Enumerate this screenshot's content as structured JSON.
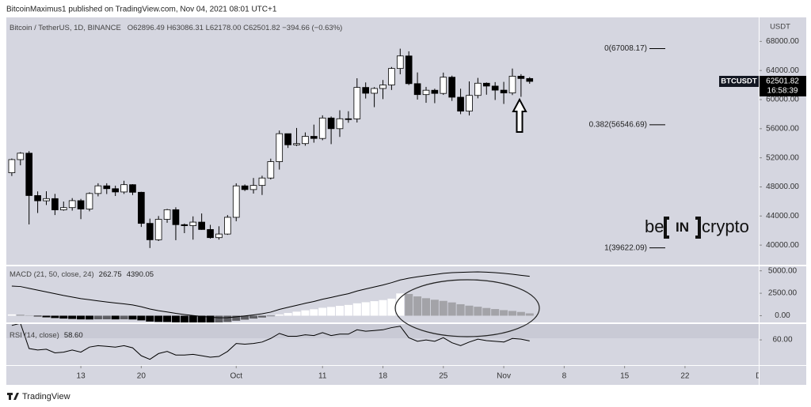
{
  "header": {
    "published": "BitcoinMaximus1 published on TradingView.com, Nov 04, 2021 08:01 UTC+1"
  },
  "watermark": {
    "left": "be",
    "middle": "IN",
    "right": "crypto"
  },
  "footer": {
    "brand": "TradingView"
  },
  "chart_data": [
    {
      "type": "candlestick",
      "symbol": "Bitcoin / TetherUS, 1D, BINANCE",
      "ohlc_label": "O62896.49 H63086.31 L62178.00 C62501.82 −394.66 (−0.63%)",
      "axis_unit": "USDT",
      "x": [
        "Sep 5",
        "Sep 6",
        "Sep 7",
        "Sep 8",
        "Sep 9",
        "Sep 10",
        "Sep 11",
        "Sep 12",
        "Sep 13",
        "Sep 14",
        "Sep 15",
        "Sep 16",
        "Sep 17",
        "Sep 18",
        "Sep 19",
        "Sep 20",
        "Sep 21",
        "Sep 22",
        "Sep 23",
        "Sep 24",
        "Sep 25",
        "Sep 26",
        "Sep 27",
        "Sep 28",
        "Sep 29",
        "Sep 30",
        "Oct 1",
        "Oct 2",
        "Oct 3",
        "Oct 4",
        "Oct 5",
        "Oct 6",
        "Oct 7",
        "Oct 8",
        "Oct 9",
        "Oct 10",
        "Oct 11",
        "Oct 12",
        "Oct 13",
        "Oct 14",
        "Oct 15",
        "Oct 16",
        "Oct 17",
        "Oct 18",
        "Oct 19",
        "Oct 20",
        "Oct 21",
        "Oct 22",
        "Oct 23",
        "Oct 24",
        "Oct 25",
        "Oct 26",
        "Oct 27",
        "Oct 28",
        "Oct 29",
        "Oct 30",
        "Oct 31",
        "Nov 1",
        "Nov 2",
        "Nov 3",
        "Nov 4"
      ],
      "open": [
        49944,
        51753,
        52633,
        46811,
        46091,
        46391,
        44842,
        45154,
        46107,
        44960,
        47093,
        48146,
        47753,
        47303,
        48307,
        47261,
        42987,
        40734,
        43543,
        44865,
        42810,
        42670,
        43160,
        42147,
        41026,
        41524,
        43820,
        48141,
        47634,
        48200,
        49224,
        51471,
        55315,
        53785,
        53951,
        54949,
        54659,
        57471,
        56005,
        57367,
        57347,
        61672,
        60875,
        61528,
        62009,
        64280,
        66001,
        62193,
        60688,
        61286,
        60852,
        63078,
        60329,
        58413,
        60575,
        62253,
        61859,
        61299,
        60911,
        63219,
        62896.49
      ],
      "high": [
        51900,
        52780,
        52920,
        47381,
        47400,
        47040,
        45988,
        46460,
        46350,
        47250,
        48500,
        48500,
        48170,
        48843,
        48373,
        47328,
        43640,
        44000,
        44978,
        45200,
        42966,
        43950,
        44350,
        42787,
        42590,
        44132,
        48495,
        48336,
        49228,
        49536,
        51886,
        55750,
        55332,
        56100,
        55489,
        56561,
        57839,
        57680,
        58532,
        58400,
        62933,
        62360,
        61718,
        62695,
        64486,
        67000,
        66639,
        63732,
        61747,
        61500,
        63710,
        63293,
        61496,
        62499,
        62980,
        62359,
        62405,
        62437,
        64270,
        63500,
        63086.31
      ],
      "low": [
        49500,
        50969,
        42843,
        44412,
        45513,
        44132,
        44722,
        44742,
        43570,
        44650,
        46700,
        47020,
        46750,
        47033,
        46876,
        42500,
        39600,
        40565,
        43069,
        40675,
        41646,
        40750,
        42098,
        40888,
        40753,
        41410,
        43283,
        47430,
        47088,
        46891,
        49022,
        50382,
        53357,
        53617,
        53661,
        54080,
        54415,
        53879,
        54870,
        56818,
        56850,
        60150,
        58963,
        60069,
        61322,
        63481,
        62000,
        60000,
        59562,
        59510,
        60650,
        59817,
        58000,
        57820,
        60174,
        60673,
        59945,
        59405,
        60624,
        60382,
        62178
      ],
      "close": [
        51753,
        52633,
        46811,
        46091,
        46391,
        44842,
        45154,
        46107,
        44960,
        47093,
        48146,
        47753,
        47303,
        48307,
        47261,
        42987,
        40734,
        43543,
        44865,
        42810,
        42670,
        43160,
        42147,
        41026,
        41524,
        43824,
        48141,
        47634,
        48200,
        49224,
        51471,
        55315,
        53785,
        53951,
        54949,
        54659,
        57471,
        56005,
        57367,
        57347,
        61672,
        60875,
        61528,
        62009,
        64280,
        66001,
        62193,
        60688,
        61286,
        60852,
        63078,
        60329,
        58413,
        60575,
        62253,
        61859,
        61299,
        60911,
        63219,
        62896.49,
        62501.82
      ],
      "up_color": "#ffffff",
      "down_color": "#000000",
      "xlim": [
        "Sep 4",
        "Dec 1"
      ],
      "xticks": [
        {
          "value": "Sep 13",
          "label": "13"
        },
        {
          "value": "Sep 20",
          "label": "20"
        },
        {
          "value": "Oct 1",
          "label": "Oct"
        },
        {
          "value": "Oct 11",
          "label": "11"
        },
        {
          "value": "Oct 18",
          "label": "18"
        },
        {
          "value": "Oct 25",
          "label": "25"
        },
        {
          "value": "Nov 1",
          "label": "Nov"
        },
        {
          "value": "Nov 8",
          "label": "8"
        },
        {
          "value": "Nov 15",
          "label": "15"
        },
        {
          "value": "Nov 22",
          "label": "22"
        },
        {
          "value": "Dec 1",
          "label": "Dec"
        }
      ],
      "ylim": [
        37300,
        71300
      ],
      "yticks": [
        {
          "value": 40000,
          "label": "40000.00"
        },
        {
          "value": 44000,
          "label": "44000.00"
        },
        {
          "value": 48000,
          "label": "48000.00"
        },
        {
          "value": 52000,
          "label": "52000.00"
        },
        {
          "value": 56000,
          "label": "56000.00"
        },
        {
          "value": 60000,
          "label": "60000.00"
        },
        {
          "value": 64000,
          "label": "64000.00"
        },
        {
          "value": 68000,
          "label": "68000.00"
        }
      ],
      "last_price": {
        "ticker": "BTCUSDT",
        "countdown": "16:58:39"
      },
      "fib_levels": [
        {
          "label": "0(67008.17)",
          "value": 67008.17
        },
        {
          "label": "0.382(56546.69)",
          "value": 56546.69
        },
        {
          "label": "1(39622.09)",
          "value": 39622.09
        }
      ]
    },
    {
      "type": "macd",
      "title": "MACD (21, 50, close, 24)",
      "histogram": {
        "values": [
          150,
          120,
          40,
          -80,
          -180,
          -260,
          -320,
          -360,
          -410,
          -420,
          -400,
          -400,
          -410,
          -400,
          -420,
          -520,
          -650,
          -690,
          -700,
          -740,
          -760,
          -770,
          -780,
          -790,
          -780,
          -700,
          -560,
          -440,
          -320,
          -200,
          -60,
          140,
          300,
          450,
          600,
          720,
          880,
          980,
          1100,
          1200,
          1380,
          1500,
          1620,
          1740,
          1900,
          2480,
          2420,
          2150,
          1950,
          1780,
          1650,
          1480,
          1280,
          1120,
          1000,
          860,
          740,
          620,
          530,
          420,
          262.75
        ],
        "colors": {
          "rising_positive": "#ffffff",
          "falling_positive": "#a3a3a8",
          "falling_negative": "#000000",
          "rising_negative": "#5e5e63"
        }
      },
      "line": {
        "color": "#000000",
        "values": [
          3300,
          3250,
          3050,
          2850,
          2650,
          2450,
          2250,
          2080,
          1900,
          1780,
          1650,
          1530,
          1420,
          1320,
          1200,
          1000,
          750,
          560,
          420,
          260,
          130,
          20,
          -80,
          -170,
          -230,
          -220,
          -120,
          -20,
          90,
          220,
          400,
          700,
          930,
          1150,
          1380,
          1580,
          1840,
          2030,
          2250,
          2450,
          2750,
          2980,
          3200,
          3420,
          3680,
          3980,
          4180,
          4330,
          4470,
          4590,
          4720,
          4800,
          4830,
          4860,
          4880,
          4850,
          4800,
          4720,
          4620,
          4500,
          4390.05
        ]
      },
      "ylim": [
        -750,
        5500
      ],
      "yticks": [
        {
          "value": 0,
          "label": "0.00"
        },
        {
          "value": 2500,
          "label": "2500.00"
        },
        {
          "value": 5000,
          "label": "5000.00"
        }
      ]
    },
    {
      "type": "rsi",
      "title": "RSI (14, close)",
      "color": "#000000",
      "values": [
        80,
        83,
        48,
        46,
        47,
        42,
        43,
        46,
        43,
        50,
        52,
        51,
        50,
        52,
        49,
        38,
        33,
        41,
        44,
        39,
        39,
        40,
        38,
        36,
        37,
        44,
        55,
        54,
        55,
        57,
        62,
        69,
        65,
        65,
        67,
        66,
        70,
        66,
        68,
        68,
        74,
        72,
        73,
        74,
        77,
        79,
        63,
        58,
        60,
        58,
        63,
        56,
        52,
        57,
        61,
        59,
        58,
        57,
        62,
        61,
        58.6
      ],
      "last_label": "58.60",
      "ylim": [
        25,
        82
      ],
      "yticks": [
        {
          "value": 60,
          "label": "60.00"
        }
      ]
    }
  ]
}
